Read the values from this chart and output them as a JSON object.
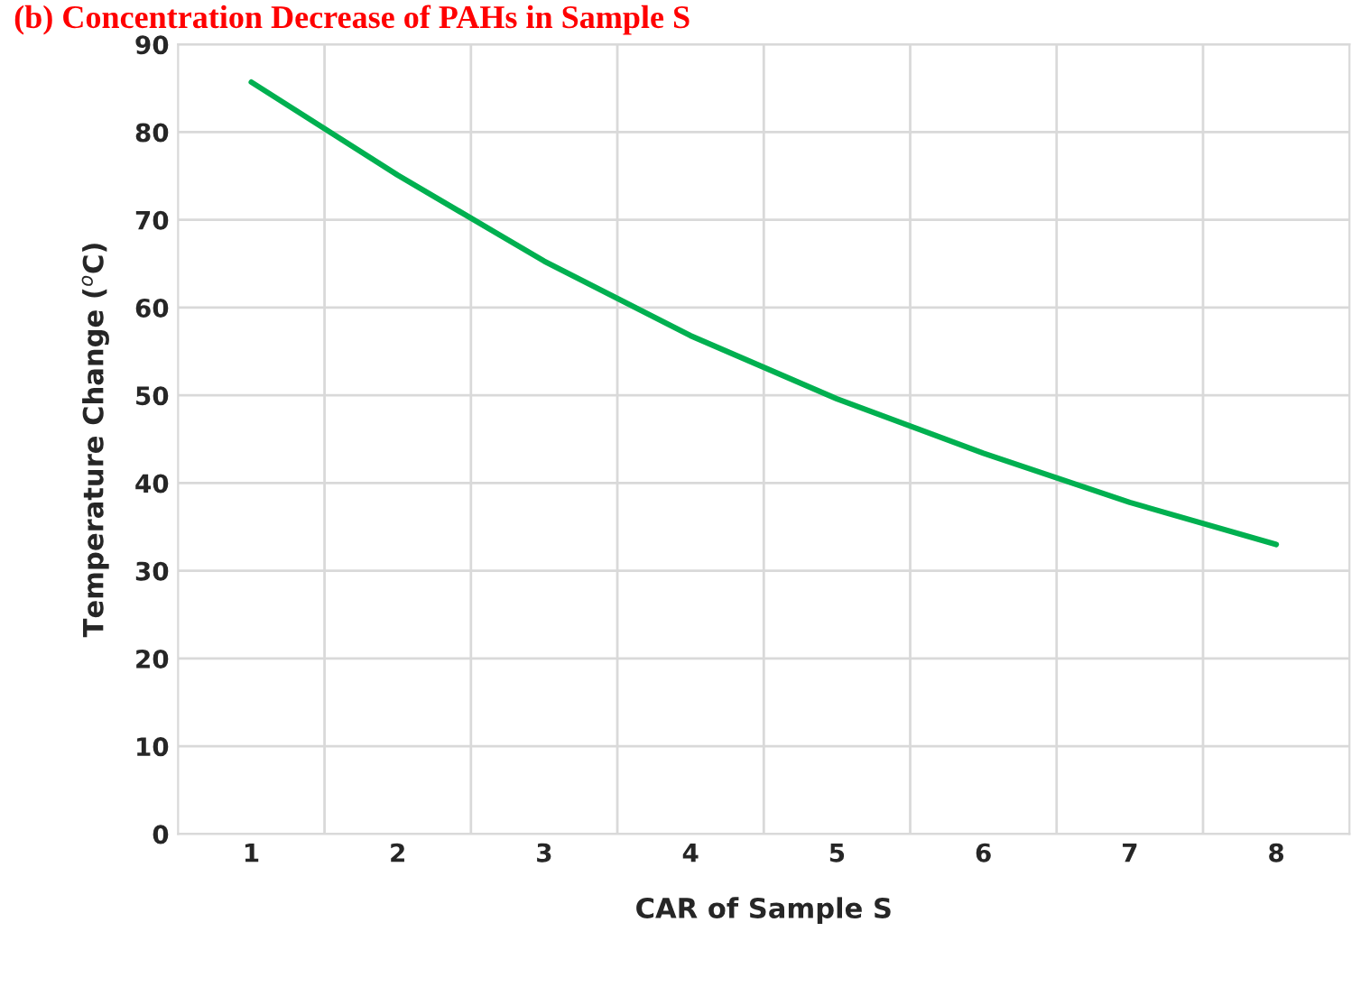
{
  "chart_data": {
    "type": "line",
    "title": "(b) Concentration Decrease of PAHs in Sample S",
    "xlabel": "CAR of Sample S",
    "ylabel": "Temperature Change ($^{o}$C)",
    "categories": [
      "1",
      "2",
      "3",
      "4",
      "5",
      "6",
      "7",
      "8"
    ],
    "series": [
      {
        "color": "#00b050",
        "values": [
          85.7,
          75.1,
          65.3,
          56.8,
          49.6,
          43.4,
          37.8,
          33.0
        ]
      }
    ],
    "ylim": [
      0,
      90
    ],
    "yticks": [
      0,
      10,
      20,
      30,
      40,
      50,
      60,
      70,
      80,
      90
    ],
    "grid": true,
    "marker": "none",
    "line_style": "solid"
  }
}
